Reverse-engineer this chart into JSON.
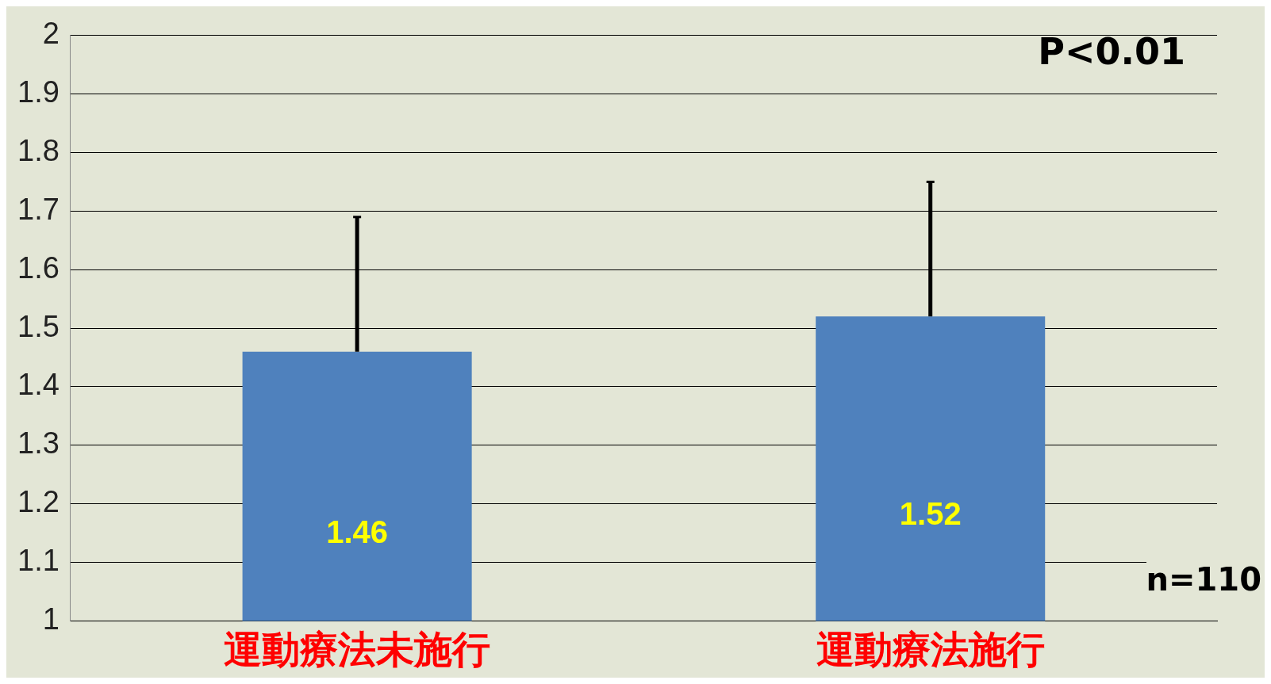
{
  "chart_data": {
    "type": "bar",
    "categories": [
      "運動療法未施行",
      "運動療法施行"
    ],
    "values": [
      1.46,
      1.52
    ],
    "color": "#4f81bd",
    "errors": [
      [
        1.46,
        1.69
      ],
      [
        1.52,
        1.75
      ]
    ],
    "data_labels": true,
    "ylim": [
      1,
      2
    ],
    "yticks": [
      1,
      1.1,
      1.2,
      1.3,
      1.4,
      1.5,
      1.6,
      1.7,
      1.8,
      1.9,
      2
    ],
    "grid": "y",
    "annotations": [
      "P<0.01",
      "n=110"
    ]
  }
}
